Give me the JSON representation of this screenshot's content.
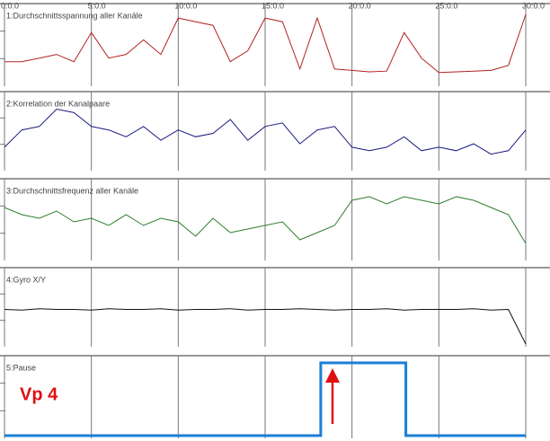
{
  "chart_data": [
    {
      "type": "line",
      "title": "1:Durchschnittsspannung aller Kanäle",
      "color": "#b22222",
      "xlim": [
        0,
        30
      ],
      "ylim": [
        0,
        100
      ],
      "xticks": [
        {
          "value": 0,
          "label": "0:0.0"
        },
        {
          "value": 5,
          "label": "5:0.0"
        },
        {
          "value": 10,
          "label": "10:0.0"
        },
        {
          "value": 15,
          "label": "15:0.0"
        },
        {
          "value": 20,
          "label": "20:0.0"
        },
        {
          "value": 25,
          "label": "25:0.0"
        },
        {
          "value": 30,
          "label": "30:0.0"
        }
      ],
      "x": [
        0,
        1,
        2,
        3,
        4,
        5,
        6,
        7,
        8,
        9,
        10,
        11,
        12,
        13,
        14,
        15,
        16,
        17,
        18,
        19,
        20,
        21,
        22,
        23,
        24,
        25,
        26,
        27,
        28,
        29,
        30
      ],
      "values": [
        30,
        30,
        35,
        40,
        30,
        70,
        35,
        40,
        60,
        40,
        90,
        85,
        80,
        30,
        45,
        90,
        85,
        20,
        90,
        20,
        18,
        16,
        17,
        70,
        35,
        15,
        16,
        17,
        18,
        25,
        95
      ]
    },
    {
      "type": "line",
      "title": "2:Korrelation der Kanalpaare",
      "color": "#1a1a80",
      "xlim": [
        0,
        30
      ],
      "ylim": [
        0,
        100
      ],
      "x": [
        0,
        1,
        2,
        3,
        4,
        5,
        6,
        7,
        8,
        9,
        10,
        11,
        12,
        13,
        14,
        15,
        16,
        17,
        18,
        19,
        20,
        21,
        22,
        23,
        24,
        25,
        26,
        27,
        28,
        29,
        30
      ],
      "values": [
        30,
        55,
        60,
        85,
        80,
        60,
        55,
        45,
        60,
        40,
        55,
        45,
        50,
        70,
        40,
        60,
        65,
        35,
        55,
        60,
        30,
        25,
        30,
        45,
        25,
        30,
        25,
        35,
        20,
        25,
        55
      ]
    },
    {
      "type": "line",
      "title": "3:Durchschnittsfrequenz aller Kanäle",
      "color": "#2e7d2e",
      "xlim": [
        0,
        30
      ],
      "ylim": [
        0,
        100
      ],
      "x": [
        0,
        1,
        2,
        3,
        4,
        5,
        6,
        7,
        8,
        9,
        10,
        11,
        12,
        13,
        14,
        15,
        16,
        17,
        18,
        19,
        20,
        21,
        22,
        23,
        24,
        25,
        26,
        27,
        28,
        29,
        30
      ],
      "values": [
        70,
        60,
        55,
        65,
        50,
        55,
        45,
        60,
        45,
        55,
        50,
        30,
        55,
        35,
        40,
        45,
        50,
        25,
        35,
        45,
        80,
        85,
        75,
        85,
        80,
        75,
        85,
        80,
        70,
        60,
        20
      ]
    },
    {
      "type": "line",
      "title": "4:Gyro X/Y",
      "color": "#111111",
      "xlim": [
        0,
        30
      ],
      "ylim": [
        0,
        100
      ],
      "x": [
        0,
        1,
        2,
        3,
        4,
        5,
        6,
        7,
        8,
        9,
        10,
        11,
        12,
        13,
        14,
        15,
        16,
        17,
        18,
        19,
        20,
        21,
        22,
        23,
        24,
        25,
        26,
        27,
        28,
        29,
        30
      ],
      "values": [
        50,
        49,
        51,
        50,
        50,
        49,
        51,
        50,
        50,
        51,
        49,
        50,
        50,
        51,
        49,
        50,
        50,
        51,
        50,
        49,
        50,
        50,
        51,
        49,
        50,
        50,
        50,
        51,
        49,
        50,
        0
      ]
    },
    {
      "type": "line",
      "title": "5:Pause",
      "annotation": "Vp 4",
      "color": "#1a7fd4",
      "xlim": [
        0,
        30
      ],
      "ylim": [
        0,
        1
      ],
      "x": [
        0,
        18.2,
        18.2,
        23.1,
        23.1,
        30
      ],
      "values": [
        0,
        0,
        1,
        1,
        0,
        0
      ]
    }
  ]
}
